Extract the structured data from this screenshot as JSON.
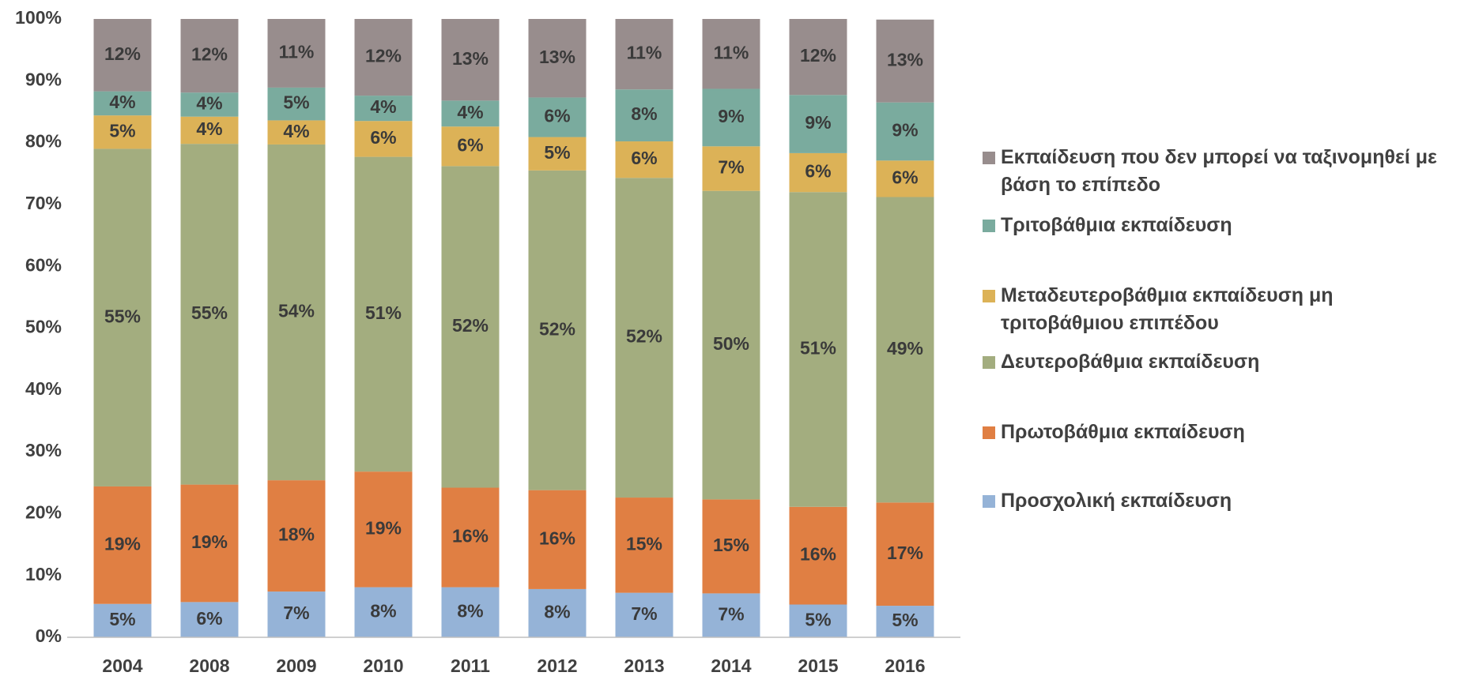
{
  "chart_data": {
    "type": "stacked_bar",
    "categories": [
      "2004",
      "2008",
      "2009",
      "2010",
      "2011",
      "2012",
      "2013",
      "2014",
      "2015",
      "2016"
    ],
    "series": [
      {
        "name": "Προσχολική εκπαίδευση",
        "color": "#95b3d7",
        "values": [
          5.4,
          5.7,
          7.4,
          8.1,
          8.1,
          7.8,
          7.2,
          7.1,
          5.3,
          5.1
        ],
        "value_labels": [
          "5%",
          "6%",
          "7%",
          "8%",
          "8%",
          "8%",
          "7%",
          "7%",
          "5%",
          "5%"
        ]
      },
      {
        "name": "Πρωτοβάθμια εκπαίδευση",
        "color": "#e07f43",
        "values": [
          19.0,
          19.0,
          18.0,
          18.7,
          16.1,
          16.0,
          15.4,
          15.2,
          15.8,
          16.7
        ],
        "value_labels": [
          "19%",
          "19%",
          "18%",
          "19%",
          "16%",
          "16%",
          "15%",
          "15%",
          "16%",
          "17%"
        ]
      },
      {
        "name": "Δευτεροβάθμια εκπαίδευση",
        "color": "#a3ad7f",
        "values": [
          54.6,
          55.1,
          54.3,
          50.9,
          52.0,
          51.7,
          51.7,
          49.9,
          50.9,
          49.4
        ],
        "value_labels": [
          "55%",
          "55%",
          "54%",
          "51%",
          "52%",
          "52%",
          "52%",
          "50%",
          "51%",
          "49%"
        ]
      },
      {
        "name": "Μεταδευτεροβάθμια εκπαίδευση μη τριτοβάθμιου επιπέδου",
        "color": "#dcb257",
        "values": [
          5.4,
          4.4,
          3.9,
          5.8,
          6.4,
          5.4,
          5.9,
          7.2,
          6.3,
          5.9
        ],
        "value_labels": [
          "5%",
          "4%",
          "4%",
          "6%",
          "6%",
          "5%",
          "6%",
          "7%",
          "6%",
          "6%"
        ]
      },
      {
        "name": "Τριτοβάθμια εκπαίδευση",
        "color": "#7aab9e",
        "values": [
          3.9,
          3.9,
          5.3,
          4.1,
          4.2,
          6.4,
          8.4,
          9.3,
          9.4,
          9.4
        ],
        "value_labels": [
          "4%",
          "4%",
          "5%",
          "4%",
          "4%",
          "6%",
          "8%",
          "9%",
          "9%",
          "9%"
        ]
      },
      {
        "name": "Εκπαίδευση που δεν μπορεί να ταξινομηθεί με βάση το επίπεδο",
        "color": "#988d8d",
        "values": [
          11.7,
          11.9,
          11.1,
          12.4,
          13.2,
          12.7,
          11.4,
          11.3,
          12.3,
          13.4
        ],
        "value_labels": [
          "12%",
          "12%",
          "11%",
          "12%",
          "13%",
          "13%",
          "11%",
          "11%",
          "12%",
          "13%"
        ]
      }
    ],
    "ylim": [
      0,
      100
    ],
    "yticks": [
      {
        "value": 0,
        "label": "0%"
      },
      {
        "value": 10,
        "label": "10%"
      },
      {
        "value": 20,
        "label": "20%"
      },
      {
        "value": 30,
        "label": "30%"
      },
      {
        "value": 40,
        "label": "40%"
      },
      {
        "value": 50,
        "label": "50%"
      },
      {
        "value": 60,
        "label": "60%"
      },
      {
        "value": 70,
        "label": "70%"
      },
      {
        "value": 80,
        "label": "80%"
      },
      {
        "value": 90,
        "label": "90%"
      },
      {
        "value": 100,
        "label": "100%"
      }
    ],
    "grid": false,
    "legend": "right"
  }
}
